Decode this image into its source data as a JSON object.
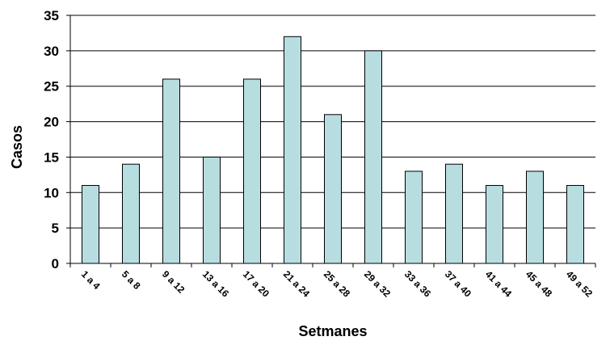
{
  "chart_data": {
    "type": "bar",
    "title": "",
    "xlabel": "Setmanes",
    "ylabel": "Casos",
    "ylim": [
      0,
      35
    ],
    "yticks": [
      0,
      5,
      10,
      15,
      20,
      25,
      30,
      35
    ],
    "grid": true,
    "legend": "none",
    "categories": [
      "1 a 4",
      "5 a 8",
      "9 a 12",
      "13 a 16",
      "17 a 20",
      "21 a 24",
      "25 a 28",
      "29 a 32",
      "33 a 36",
      "37 a 40",
      "41 a 44",
      "45 a 48",
      "49 a 52"
    ],
    "values": [
      11,
      14,
      26,
      15,
      26,
      32,
      21,
      30,
      13,
      14,
      11,
      13,
      11
    ],
    "colors": {
      "bar_fill": "#b8dde0",
      "bar_stroke": "#000000",
      "grid": "#000000"
    }
  }
}
